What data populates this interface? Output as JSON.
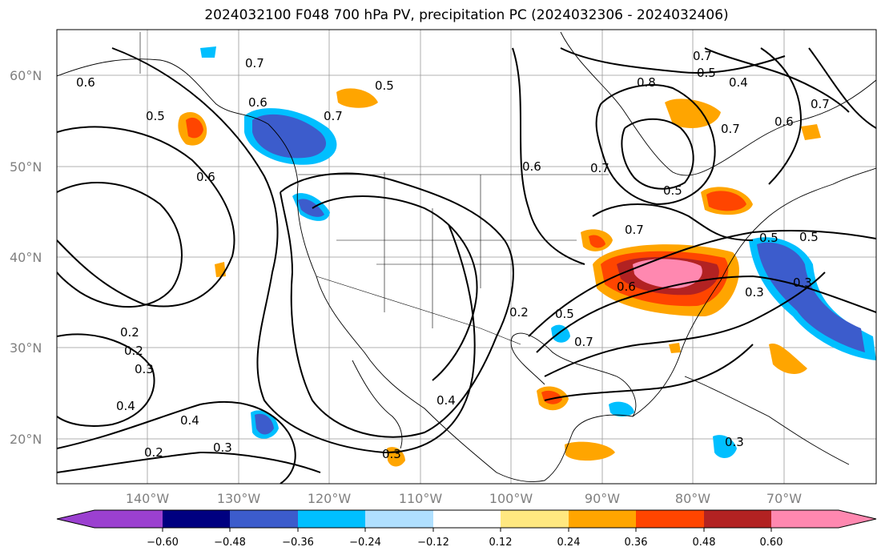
{
  "title": "2024032100 F048 700 hPa PV, precipitation PC (2024032306 - 2024032406)",
  "map": {
    "lat_labels": [
      "60°N",
      "50°N",
      "40°N",
      "30°N",
      "20°N"
    ],
    "lon_labels": [
      "140°W",
      "130°W",
      "120°W",
      "110°W",
      "100°W",
      "90°W",
      "80°W",
      "70°W"
    ],
    "contour_labels": [
      "0.7",
      "0.5",
      "0.6",
      "0.7",
      "0.6",
      "0.5",
      "0.6",
      "0.6",
      "0.7",
      "0.5",
      "0.8",
      "0.7",
      "0.4",
      "0.6",
      "0.7",
      "0.5",
      "0.7",
      "0.7",
      "0.6",
      "0.5",
      "0.5",
      "0.3",
      "0.3",
      "0.2",
      "0.2",
      "0.3",
      "0.4",
      "0.4",
      "0.2",
      "0.3",
      "0.3",
      "0.4",
      "0.5",
      "0.7",
      "0.3",
      "0.2"
    ]
  },
  "colorbar": {
    "colors": [
      "#9b40d0",
      "#000080",
      "#3c5ccc",
      "#00bfff",
      "#b0e0ff",
      "#ffffff",
      "#ffe880",
      "#ffa500",
      "#ff4500",
      "#b22222",
      "#ff88b0"
    ],
    "tick_labels": [
      "−0.60",
      "−0.48",
      "−0.36",
      "−0.24",
      "−0.12",
      "0.12",
      "0.24",
      "0.36",
      "0.48",
      "0.60"
    ]
  }
}
